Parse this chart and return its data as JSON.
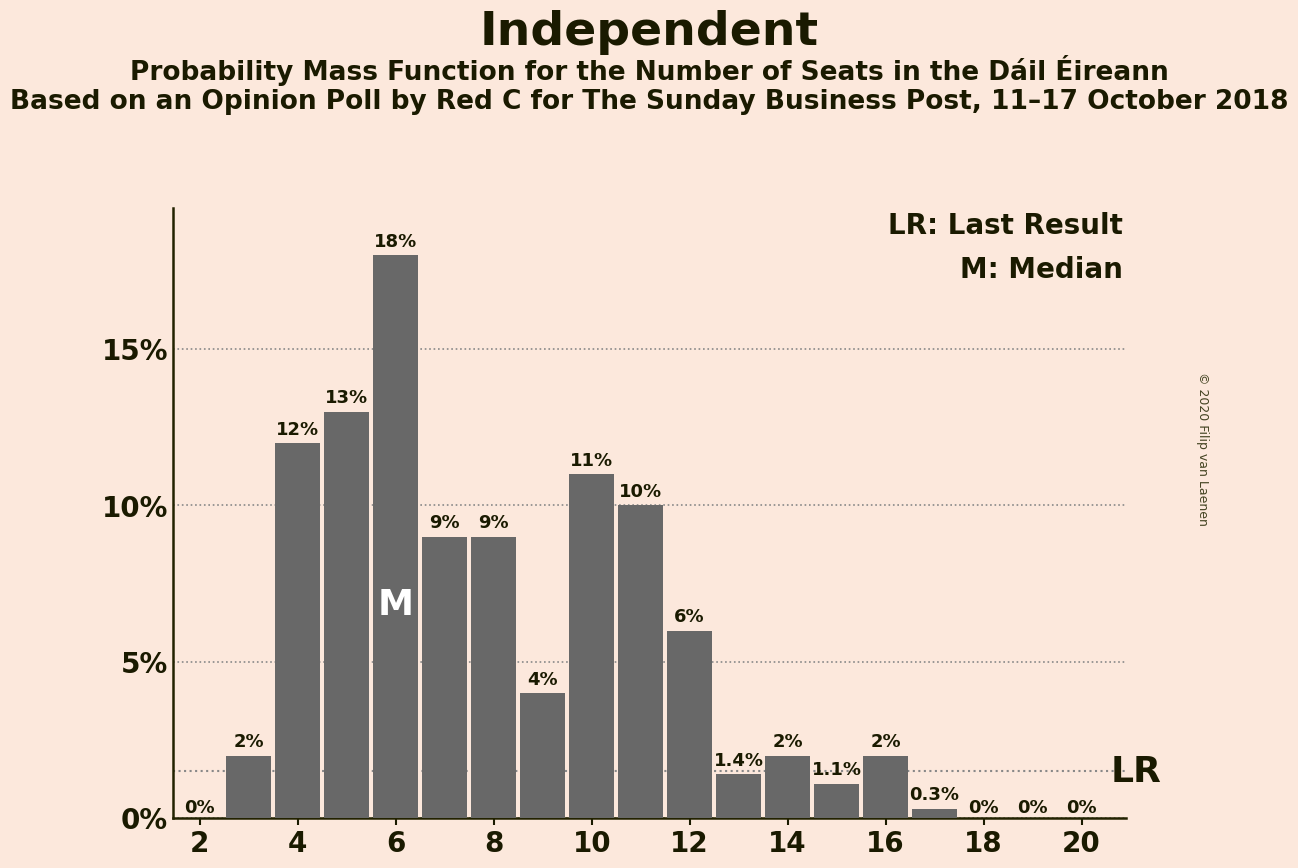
{
  "title": "Independent",
  "subtitle1": "Probability Mass Function for the Number of Seats in the Dáil Éireann",
  "subtitle2": "Based on an Opinion Poll by Red C for The Sunday Business Post, 11–17 October 2018",
  "copyright": "© 2020 Filip van Laenen",
  "categories": [
    2,
    3,
    4,
    5,
    6,
    7,
    8,
    9,
    10,
    11,
    12,
    13,
    14,
    15,
    16,
    17,
    18,
    19,
    20
  ],
  "values": [
    0,
    2,
    12,
    13,
    18,
    9,
    9,
    4,
    11,
    10,
    6,
    1.4,
    2,
    1.1,
    2,
    0.3,
    0,
    0,
    0
  ],
  "bar_labels": [
    "0%",
    "2%",
    "12%",
    "13%",
    "18%",
    "9%",
    "9%",
    "4%",
    "11%",
    "10%",
    "6%",
    "1.4%",
    "2%",
    "1.1%",
    "2%",
    "0.3%",
    "0%",
    "0%",
    "0%"
  ],
  "bar_color": "#686868",
  "background_color": "#fce8dc",
  "ytick_labels": [
    "0%",
    "5%",
    "10%",
    "15%"
  ],
  "ytick_values": [
    0,
    5,
    10,
    15
  ],
  "ylim": [
    0,
    19.5
  ],
  "xlabel": "",
  "ylabel": "",
  "median_bar": 6,
  "median_label": "M",
  "lr_line_value": 1.5,
  "lr_label": "LR",
  "legend_lr": "LR: Last Result",
  "legend_m": "M: Median",
  "title_fontsize": 34,
  "subtitle1_fontsize": 19,
  "subtitle2_fontsize": 19,
  "bar_label_fontsize": 13,
  "axis_tick_fontsize": 20,
  "legend_fontsize": 20,
  "median_fontsize": 26,
  "lr_fontsize": 26,
  "copyright_fontsize": 9,
  "grid_color": "#888888",
  "text_color": "#1a1a00"
}
